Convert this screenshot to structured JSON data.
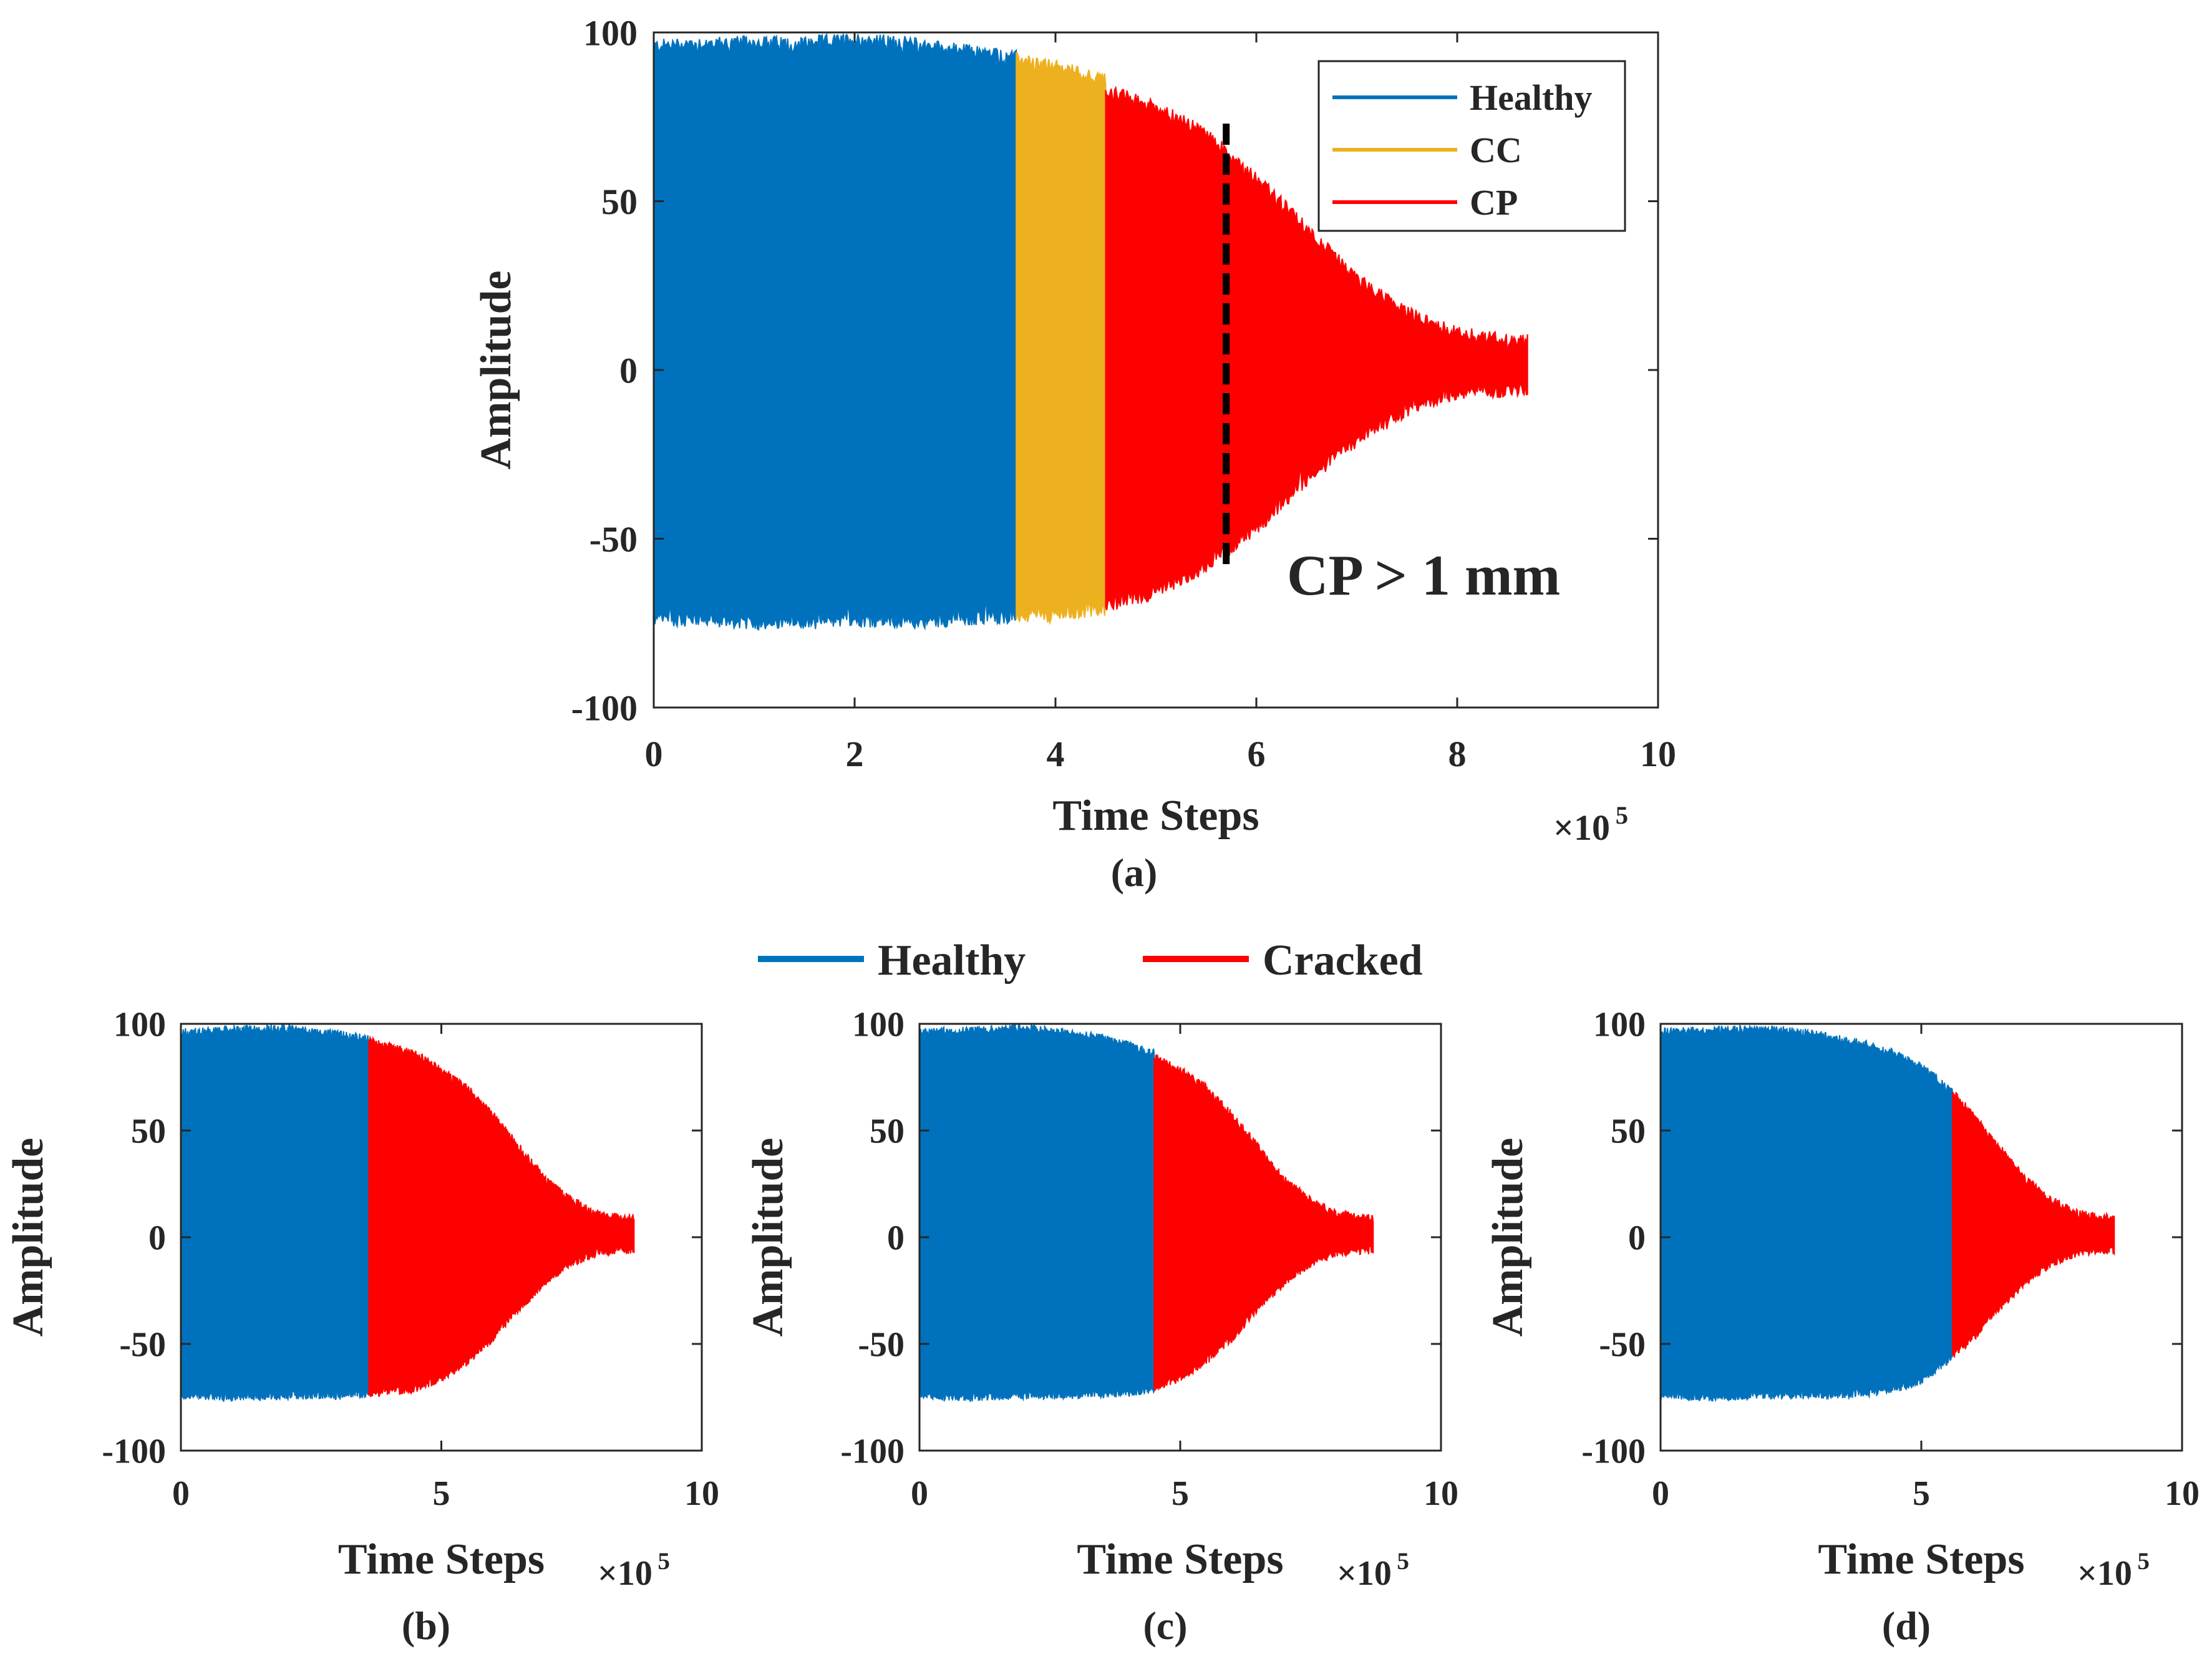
{
  "chart_data": [
    {
      "id": "a",
      "type": "area",
      "caption": "(a)",
      "title": "",
      "xlabel": "Time Steps",
      "ylabel": "Amplitude",
      "x_multiplier": "×10",
      "x_multiplier_exponent": "5",
      "xlim": [
        0,
        10
      ],
      "ylim": [
        -100,
        100
      ],
      "xticks": [
        "0",
        "2",
        "4",
        "6",
        "8",
        "10"
      ],
      "yticks": [
        "-100",
        "-50",
        "0",
        "50",
        "100"
      ],
      "series": [
        {
          "name": "Healthy",
          "color": "#0072BD",
          "x": [
            0,
            0.5,
            1,
            1.5,
            2,
            2.5,
            3,
            3.61
          ],
          "upper": [
            96,
            97,
            97,
            97,
            98,
            97,
            95,
            93
          ],
          "lower": [
            -74,
            -74,
            -75,
            -75,
            -74,
            -75,
            -74,
            -73
          ]
        },
        {
          "name": "CC",
          "color": "#EDB120",
          "x": [
            3.61,
            4,
            4.5
          ],
          "upper": [
            92,
            90,
            86
          ],
          "lower": [
            -73,
            -73,
            -71
          ]
        },
        {
          "name": "CP",
          "color": "#FF0000",
          "x": [
            4.5,
            5,
            5.5,
            6,
            6.5,
            7,
            7.5,
            8,
            8.5,
            8.7
          ],
          "upper": [
            83,
            78,
            70,
            57,
            42,
            27,
            17,
            11,
            9,
            9
          ],
          "lower": [
            -70,
            -66,
            -58,
            -47,
            -33,
            -21,
            -12,
            -7,
            -6,
            -6
          ]
        }
      ],
      "vline": {
        "x": 5.7,
        "y_range": [
          -60,
          73
        ],
        "style": "dashed",
        "color": "#000000"
      },
      "annotation": "CP > 1 mm",
      "legend": {
        "position": "top-right",
        "entries": [
          "Healthy",
          "CC",
          "CP"
        ]
      }
    },
    {
      "id": "b",
      "type": "area",
      "caption": "(b)",
      "xlabel": "Time Steps",
      "ylabel": "Amplitude",
      "x_multiplier": "×10",
      "x_multiplier_exponent": "5",
      "xlim": [
        0,
        10
      ],
      "ylim": [
        -100,
        100
      ],
      "xticks": [
        "0",
        "5",
        "10"
      ],
      "yticks": [
        "-100",
        "-50",
        "0",
        "50",
        "100"
      ],
      "series": [
        {
          "name": "Healthy",
          "color": "#0072BD",
          "x": [
            0,
            1,
            2,
            3,
            3.61
          ],
          "upper": [
            96,
            97,
            98,
            95,
            93
          ],
          "lower": [
            -74,
            -75,
            -74,
            -74,
            -73
          ]
        },
        {
          "name": "Cracked",
          "color": "#FF0000",
          "x": [
            3.61,
            4.5,
            5,
            5.5,
            6,
            6.5,
            7,
            7.5,
            8,
            8.5,
            8.7
          ],
          "upper": [
            92,
            86,
            78,
            70,
            57,
            42,
            27,
            17,
            11,
            9,
            9
          ],
          "lower": [
            -73,
            -71,
            -66,
            -58,
            -47,
            -33,
            -21,
            -12,
            -7,
            -6,
            -6
          ]
        }
      ]
    },
    {
      "id": "c",
      "type": "area",
      "caption": "(c)",
      "xlabel": "Time Steps",
      "ylabel": "Amplitude",
      "x_multiplier": "×10",
      "x_multiplier_exponent": "5",
      "xlim": [
        0,
        10
      ],
      "ylim": [
        -100,
        100
      ],
      "xticks": [
        "0",
        "5",
        "10"
      ],
      "yticks": [
        "-100",
        "-50",
        "0",
        "50",
        "100"
      ],
      "series": [
        {
          "name": "Healthy",
          "color": "#0072BD",
          "x": [
            0,
            1,
            2,
            3,
            3.61,
            4,
            4.5
          ],
          "upper": [
            96,
            97,
            98,
            95,
            93,
            90,
            86
          ],
          "lower": [
            -74,
            -75,
            -74,
            -74,
            -73,
            -73,
            -71
          ]
        },
        {
          "name": "Cracked",
          "color": "#FF0000",
          "x": [
            4.5,
            5,
            5.5,
            6,
            6.5,
            7,
            7.5,
            8,
            8.5,
            8.7
          ],
          "upper": [
            85,
            78,
            70,
            57,
            42,
            27,
            17,
            11,
            9,
            9
          ],
          "lower": [
            -70,
            -66,
            -58,
            -47,
            -33,
            -21,
            -12,
            -7,
            -6,
            -6
          ]
        }
      ]
    },
    {
      "id": "d",
      "type": "area",
      "caption": "(d)",
      "xlabel": "Time Steps",
      "ylabel": "Amplitude",
      "x_multiplier": "×10",
      "x_multiplier_exponent": "5",
      "xlim": [
        0,
        10
      ],
      "ylim": [
        -100,
        100
      ],
      "xticks": [
        "0",
        "5",
        "10"
      ],
      "yticks": [
        "-100",
        "-50",
        "0",
        "50",
        "100"
      ],
      "series": [
        {
          "name": "Healthy",
          "color": "#0072BD",
          "x": [
            0,
            1,
            2,
            3,
            4,
            4.5,
            5,
            5.5,
            5.6
          ],
          "upper": [
            96,
            97,
            98,
            95,
            90,
            86,
            80,
            70,
            68
          ],
          "lower": [
            -74,
            -75,
            -74,
            -74,
            -73,
            -71,
            -67,
            -58,
            -55
          ]
        },
        {
          "name": "Cracked",
          "color": "#FF0000",
          "x": [
            5.6,
            6,
            6.5,
            7,
            7.5,
            8,
            8.5,
            8.7
          ],
          "upper": [
            68,
            57,
            42,
            27,
            17,
            11,
            9,
            9
          ],
          "lower": [
            -55,
            -47,
            -33,
            -21,
            -12,
            -7,
            -6,
            -6
          ]
        }
      ]
    }
  ],
  "shared_legend": {
    "entries": [
      {
        "label": "Healthy",
        "color": "#0072BD"
      },
      {
        "label": "Cracked",
        "color": "#FF0000"
      }
    ]
  }
}
